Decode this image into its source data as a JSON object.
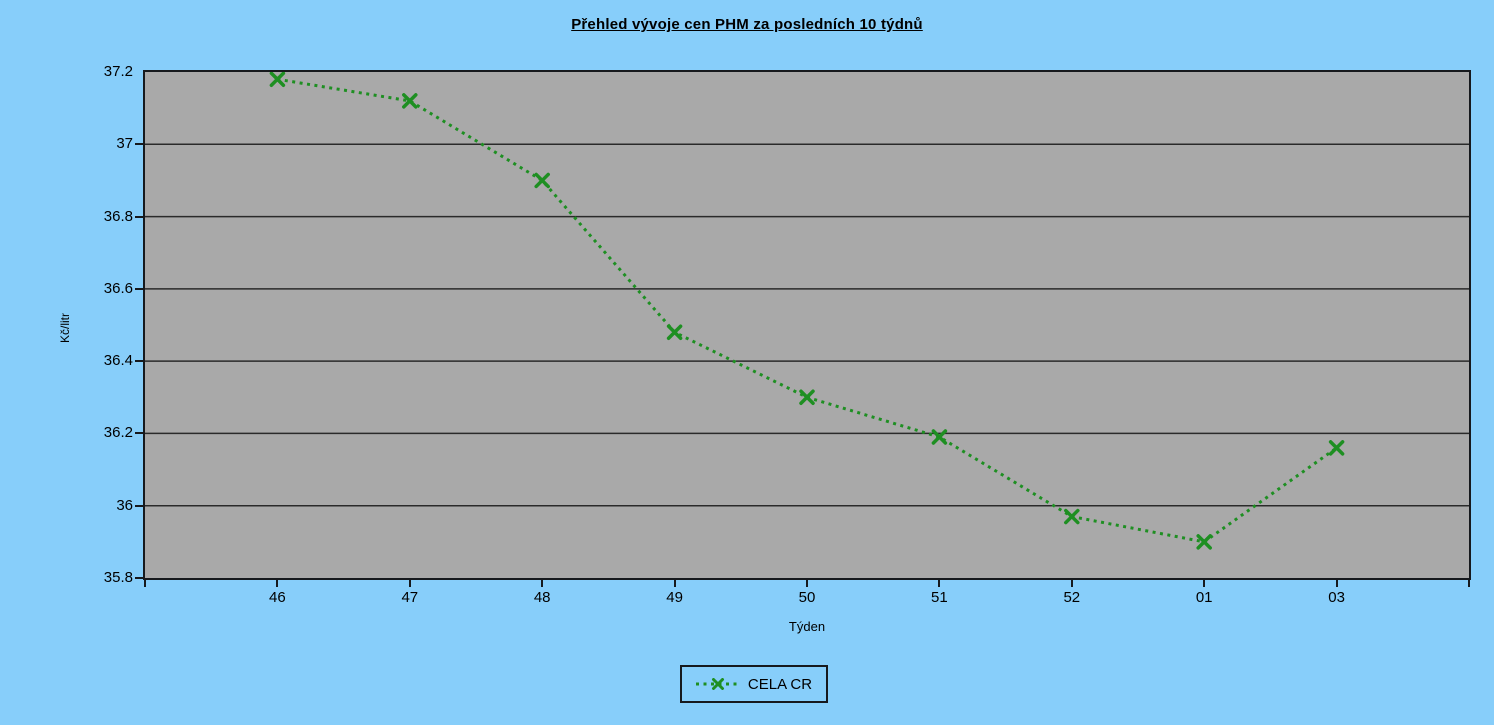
{
  "chart_data": {
    "type": "line",
    "title": "Přehled vývoje cen PHM za posledních 10 týdnů",
    "xlabel": "Týden",
    "ylabel": "Kč/litr",
    "categories": [
      "46",
      "47",
      "48",
      "49",
      "50",
      "51",
      "52",
      "01",
      "03"
    ],
    "series": [
      {
        "name": "CELA CR",
        "values": [
          37.18,
          37.12,
          36.9,
          36.48,
          36.3,
          36.19,
          35.97,
          35.9,
          36.16
        ]
      }
    ],
    "ylim": [
      35.8,
      37.2
    ],
    "y_tick_step": 0.2,
    "y_tick_labels": [
      "37.2",
      "37",
      "36.8",
      "36.6",
      "36.4",
      "36.2",
      "36",
      "35.8"
    ],
    "y_tick_values": [
      37.2,
      37.0,
      36.8,
      36.6,
      36.4,
      36.2,
      36.0,
      35.8
    ],
    "grid": true,
    "line_style": "dotted",
    "marker": "x",
    "legend_position": "bottom",
    "colors": {
      "background": "#87CEFA",
      "plot_fill": "#A9A9A9",
      "series_line": "#1E8F22",
      "gridline": "#2A2A2A",
      "axis": "#16191D",
      "text": "#000000"
    }
  }
}
